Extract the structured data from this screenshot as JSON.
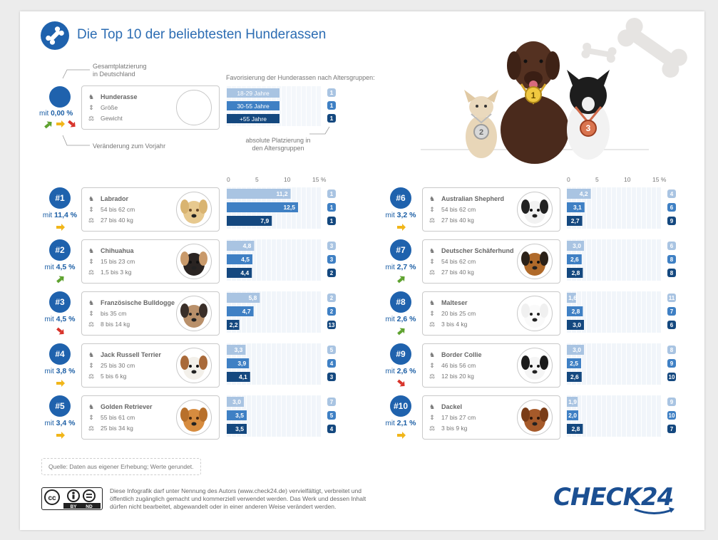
{
  "header": {
    "title": "Die Top 10 der beliebtesten Hunderassen"
  },
  "legend": {
    "overall_rank_label": "Gesamtplatzierung\nin Deutschland",
    "change_label": "Veränderung zum Vorjahr",
    "share_prefix": "mit",
    "share_value": "0,00 %",
    "field_breed": "Hunderasse",
    "field_size": "Größe",
    "field_weight": "Gewicht",
    "favorisierung_label": "Favorisierung der Hunderassen nach Altersgruppen:",
    "age_groups": [
      "18-29 Jahre",
      "30-55 Jahre",
      "+55 Jahre"
    ],
    "age_ranks": [
      "1",
      "1",
      "1"
    ],
    "absolute_label": "absolute Platzierung in\nden Altersgruppen"
  },
  "colors": {
    "light": "#a9c4e2",
    "mid": "#3f80c4",
    "dark": "#14487f",
    "accent": "#1f62ad",
    "arrow_up": "#5ea22f",
    "arrow_same": "#f1b61a",
    "arrow_down": "#d8332a"
  },
  "axis_ticks": [
    "0",
    "5",
    "10",
    "15 %"
  ],
  "footer": {
    "source": "Quelle: Daten aus eigener Erhebung; Werte gerundet.",
    "license": "Diese Infografik darf unter Nennung des Autors (www.check24.de) vervielfältigt, verbreitet und öffentlich zugänglich gemacht und kommerziell verwendet werden. Das Werk und dessen Inhalt dürfen nicht bearbeitet, abgewandelt oder in einer anderen Weise verändert werden.",
    "cc_by": "BY",
    "cc_nd": "ND",
    "brand": "CHECK24"
  },
  "podium": [
    "1",
    "2",
    "3"
  ],
  "chart_data": {
    "type": "bar",
    "title": "Die Top 10 der beliebtesten Hunderassen",
    "xlim": [
      0,
      15
    ],
    "series_names": [
      "18-29 Jahre",
      "30-55 Jahre",
      "+55 Jahre"
    ],
    "breeds": [
      {
        "rank": "#1",
        "share": "11,4 %",
        "trend": "same",
        "name": "Labrador",
        "size": "54 bis 62 cm",
        "weight": "27 bis 40 kg",
        "values": [
          11.2,
          12.5,
          7.9
        ],
        "labels": [
          "11,2",
          "12,5",
          "7,9"
        ],
        "ranks": [
          "1",
          "1",
          "1"
        ]
      },
      {
        "rank": "#2",
        "share": "4,5 %",
        "trend": "up",
        "name": "Chihuahua",
        "size": "15 bis 23 cm",
        "weight": "1,5 bis 3 kg",
        "values": [
          4.8,
          4.5,
          4.4
        ],
        "labels": [
          "4,8",
          "4,5",
          "4,4"
        ],
        "ranks": [
          "3",
          "3",
          "2"
        ]
      },
      {
        "rank": "#3",
        "share": "4,5 %",
        "trend": "down",
        "name": "Französische Bulldogge",
        "size": "bis 35 cm",
        "weight": "8 bis 14 kg",
        "values": [
          5.8,
          4.7,
          2.2
        ],
        "labels": [
          "5,8",
          "4,7",
          "2,2"
        ],
        "ranks": [
          "2",
          "2",
          "13"
        ]
      },
      {
        "rank": "#4",
        "share": "3,8 %",
        "trend": "same",
        "name": "Jack Russell Terrier",
        "size": "25 bis 30 cm",
        "weight": "5 bis 6 kg",
        "values": [
          3.3,
          3.9,
          4.1
        ],
        "labels": [
          "3,3",
          "3,9",
          "4,1"
        ],
        "ranks": [
          "5",
          "4",
          "3"
        ]
      },
      {
        "rank": "#5",
        "share": "3,4 %",
        "trend": "same",
        "name": "Golden Retriever",
        "size": "55 bis 61 cm",
        "weight": "25 bis 34 kg",
        "values": [
          3.0,
          3.5,
          3.5
        ],
        "labels": [
          "3,0",
          "3,5",
          "3,5"
        ],
        "ranks": [
          "7",
          "5",
          "4"
        ]
      },
      {
        "rank": "#6",
        "share": "3,2 %",
        "trend": "same",
        "name": "Australian Shepherd",
        "size": "54 bis 62 cm",
        "weight": "27 bis 40 kg",
        "values": [
          4.2,
          3.1,
          2.7
        ],
        "labels": [
          "4,2",
          "3,1",
          "2,7"
        ],
        "ranks": [
          "4",
          "6",
          "9"
        ]
      },
      {
        "rank": "#7",
        "share": "2,7 %",
        "trend": "up",
        "name": "Deutscher Schäferhund",
        "size": "54 bis 62 cm",
        "weight": "27 bis 40 kg",
        "values": [
          3.0,
          2.6,
          2.8
        ],
        "labels": [
          "3,0",
          "2,6",
          "2,8"
        ],
        "ranks": [
          "6",
          "8",
          "8"
        ]
      },
      {
        "rank": "#8",
        "share": "2,6 %",
        "trend": "up",
        "name": "Malteser",
        "size": "20 bis 25 cm",
        "weight": "3 bis 4 kg",
        "values": [
          1.6,
          2.8,
          3.0
        ],
        "labels": [
          "1,6",
          "2,8",
          "3,0"
        ],
        "ranks": [
          "11",
          "7",
          "6"
        ]
      },
      {
        "rank": "#9",
        "share": "2,6 %",
        "trend": "down",
        "name": "Border Collie",
        "size": "46 bis 56 cm",
        "weight": "12 bis 20 kg",
        "values": [
          3.0,
          2.5,
          2.6
        ],
        "labels": [
          "3,0",
          "2,5",
          "2,6"
        ],
        "ranks": [
          "8",
          "9",
          "10"
        ]
      },
      {
        "rank": "#10",
        "share": "2,1 %",
        "trend": "same",
        "name": "Dackel",
        "size": "17 bis 27 cm",
        "weight": "3 bis 9 kg",
        "values": [
          1.9,
          2.0,
          2.8
        ],
        "labels": [
          "1,9",
          "2,0",
          "2,8"
        ],
        "ranks": [
          "9",
          "10",
          "7"
        ]
      }
    ]
  }
}
